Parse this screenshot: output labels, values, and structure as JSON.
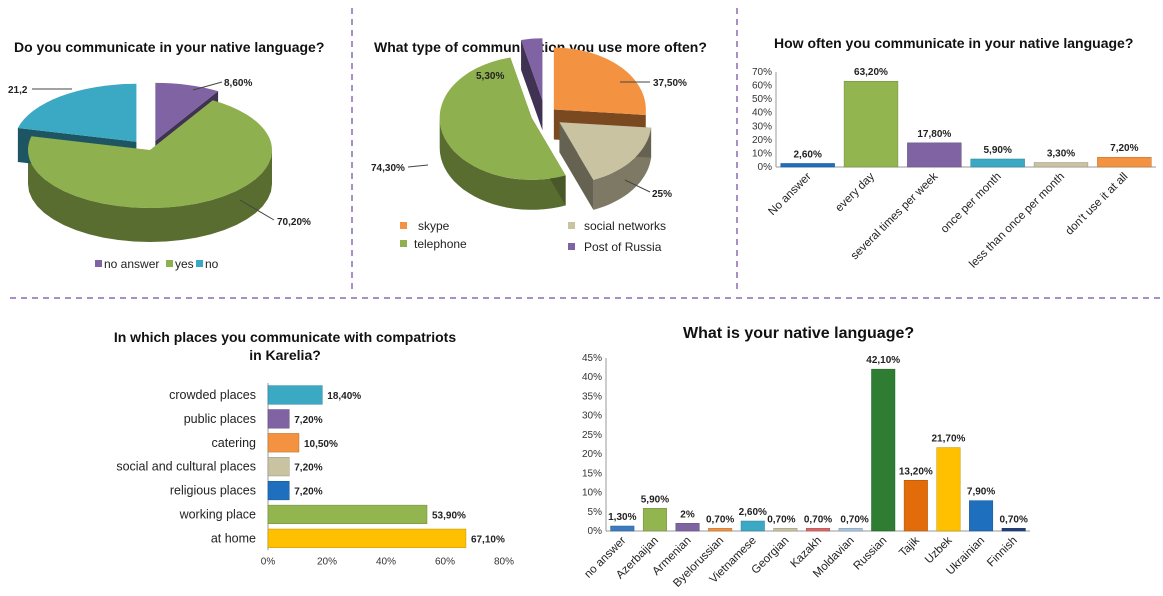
{
  "charts": {
    "native_use": {
      "title": "Do you communicate in your native language?",
      "labels": {
        "no_answer": "8,60%",
        "yes": "70,20%",
        "no": "21,2"
      },
      "legend": [
        "no answer",
        "yes",
        "no"
      ]
    },
    "comm_type": {
      "title": "What type of communication you use more often?",
      "labels": {
        "skype": "37,50%",
        "social": "25%",
        "telephone": "74,30%",
        "post": "5,30%"
      },
      "legend": [
        "skype",
        "social networks",
        "telephone",
        "Post of Russia"
      ]
    },
    "frequency": {
      "title": "How often you communicate in your native language?",
      "y_ticks": [
        "0%",
        "10%",
        "20%",
        "30%",
        "40%",
        "50%",
        "60%",
        "70%"
      ],
      "value_labels": [
        "2,60%",
        "63,20%",
        "17,80%",
        "5,90%",
        "3,30%",
        "7,20%"
      ],
      "categories": [
        "No answer",
        "every day",
        "several times per week",
        "once per month",
        "less than once per month",
        "don't use it at all"
      ]
    },
    "places": {
      "title_line1": "In which places you communicate with compatriots",
      "title_line2": "in Karelia?",
      "categories": [
        "crowded places",
        "public places",
        "catering",
        "social and cultural places",
        "religious places",
        "working place",
        "at home"
      ],
      "value_labels": [
        "18,40%",
        "7,20%",
        "10,50%",
        "7,20%",
        "7,20%",
        "53,90%",
        "67,10%"
      ],
      "x_ticks": [
        "0%",
        "20%",
        "40%",
        "60%",
        "80%"
      ]
    },
    "language": {
      "title": "What is your native language?",
      "y_ticks": [
        "0%",
        "5%",
        "10%",
        "15%",
        "20%",
        "25%",
        "30%",
        "35%",
        "40%",
        "45%"
      ],
      "categories": [
        "no answer",
        "Azerbaijan",
        "Armenian",
        "Byelorussian",
        "Vietnamese",
        "Georgian",
        "Kazakh",
        "Moldavian",
        "Russian",
        "Tajik",
        "Uzbek",
        "Ukrainian",
        "Finnish"
      ],
      "value_labels": [
        "1,30%",
        "5,90%",
        "2%",
        "0,70%",
        "2,60%",
        "0,70%",
        "0,70%",
        "0,70%",
        "42,10%",
        "13,20%",
        "21,70%",
        "7,90%",
        "0,70%"
      ]
    }
  },
  "chart_data": [
    {
      "type": "pie",
      "title": "Do you communicate in your native language?",
      "labels": [
        "no answer",
        "yes",
        "no"
      ],
      "values": [
        8.6,
        70.2,
        21.2
      ],
      "colors": [
        "#7F63A3",
        "#8FB04F",
        "#3CA9C4"
      ],
      "legend": "bottom"
    },
    {
      "type": "pie",
      "title": "What type of communication you use more often?",
      "labels": [
        "skype",
        "social networks",
        "telephone",
        "Post of Russia"
      ],
      "values": [
        37.5,
        25,
        74.3,
        5.3
      ],
      "colors": [
        "#F39240",
        "#C9C3A2",
        "#8FB04F",
        "#7F63A3"
      ],
      "legend": "bottom"
    },
    {
      "type": "bar",
      "title": "How often you communicate in your native language?",
      "categories": [
        "No answer",
        "every day",
        "several times per week",
        "once per month",
        "less than once per month",
        "don't use it at all"
      ],
      "values": [
        2.6,
        63.2,
        17.8,
        5.9,
        3.3,
        7.2
      ],
      "colors": [
        "#1F6FBF",
        "#93B550",
        "#7F63A3",
        "#3CA9C4",
        "#C9C3A2",
        "#F39240"
      ],
      "ylim": [
        0,
        70
      ],
      "grid": false
    },
    {
      "type": "bar",
      "orientation": "horizontal",
      "title": "In which places you communicate with compatriots in Karelia?",
      "categories": [
        "crowded places",
        "public places",
        "catering",
        "social and cultural places",
        "religious places",
        "working place",
        "at home"
      ],
      "values": [
        18.4,
        7.2,
        10.5,
        7.2,
        7.2,
        53.9,
        67.1
      ],
      "colors": [
        "#3CA9C4",
        "#7F63A3",
        "#F39240",
        "#C9C3A2",
        "#1F6FBF",
        "#93B550",
        "#FFC000"
      ],
      "xlim": [
        0,
        80
      ],
      "grid": false
    },
    {
      "type": "bar",
      "title": "What is your native language?",
      "categories": [
        "no answer",
        "Azerbaijan",
        "Armenian",
        "Byelorussian",
        "Vietnamese",
        "Georgian",
        "Kazakh",
        "Moldavian",
        "Russian",
        "Tajik",
        "Uzbek",
        "Ukrainian",
        "Finnish"
      ],
      "values": [
        1.3,
        5.9,
        2,
        0.7,
        2.6,
        0.7,
        0.7,
        0.7,
        42.1,
        13.2,
        21.7,
        7.9,
        0.7
      ],
      "colors": [
        "#3C7BBF",
        "#93B550",
        "#7F63A3",
        "#F39240",
        "#3CA9C4",
        "#C9C3A2",
        "#E06666",
        "#A9C4E0",
        "#2E7D32",
        "#E36C0A",
        "#FFC000",
        "#1F6FBF",
        "#1F3F7F"
      ],
      "ylim": [
        0,
        45
      ],
      "grid": false
    }
  ]
}
